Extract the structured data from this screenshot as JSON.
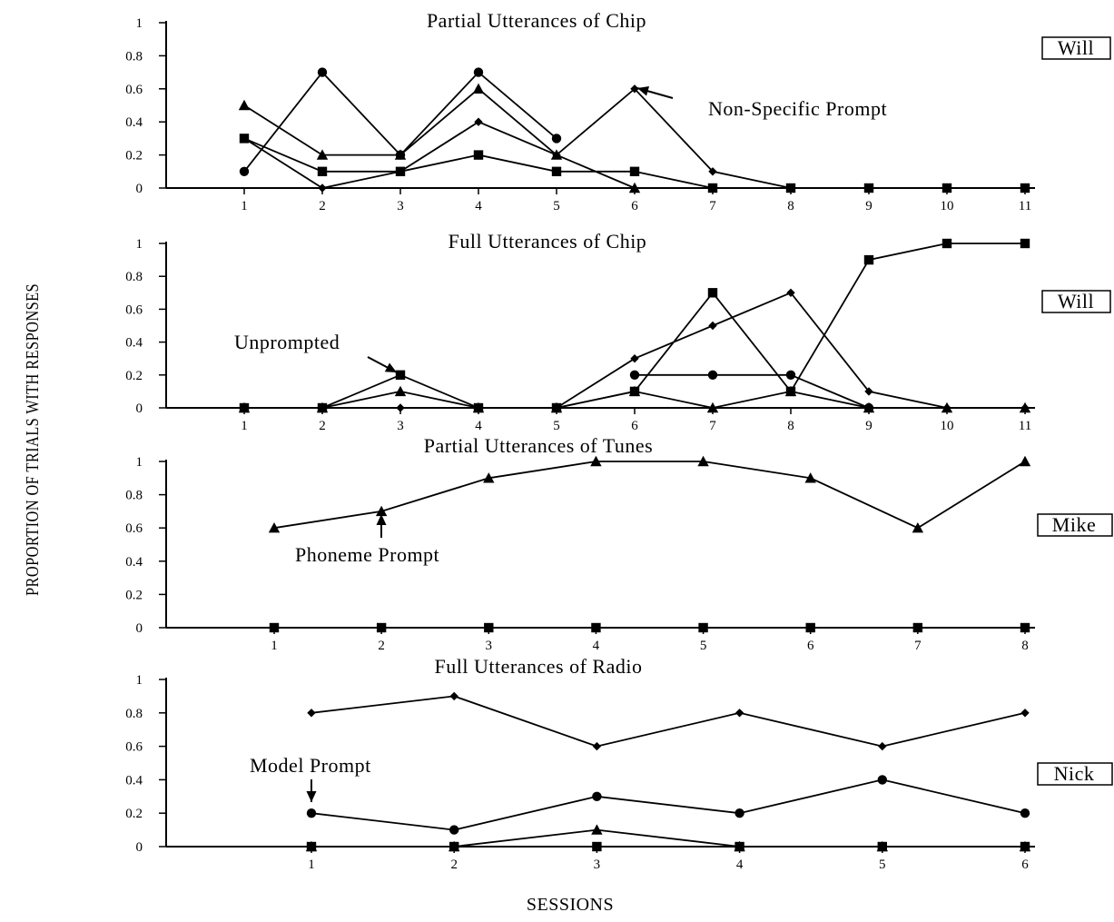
{
  "y_axis_title": "PROPORTION OF TRIALS WITH RESPONSES",
  "x_axis_title": "SESSIONS",
  "chart_data": [
    {
      "type": "line",
      "title": "Partial Utterances of Chip",
      "subject": "Will",
      "ylim": [
        0,
        1
      ],
      "yticks": [
        "0",
        "0.2",
        "0.4",
        "0.6",
        "0.8",
        "1"
      ],
      "x": [
        "1",
        "2",
        "3",
        "4",
        "5",
        "6",
        "7",
        "8",
        "9",
        "10",
        "11"
      ],
      "annotation": "Non-Specific Prompt",
      "series": [
        {
          "marker": "square",
          "values": [
            0.3,
            0.1,
            0.1,
            0.2,
            0.1,
            0.1,
            0,
            0,
            0,
            0,
            0
          ]
        },
        {
          "marker": "circle",
          "values": [
            0.1,
            0.7,
            0.2,
            0.7,
            0.3,
            null,
            null,
            null,
            null,
            null,
            null
          ]
        },
        {
          "marker": "triangle",
          "values": [
            0.5,
            0.2,
            0.2,
            0.6,
            0.2,
            0,
            null,
            null,
            null,
            null,
            null
          ]
        },
        {
          "marker": "diamond",
          "values": [
            0.3,
            0,
            0.1,
            0.4,
            0.2,
            0.6,
            0.1,
            0,
            0,
            0,
            0
          ]
        }
      ]
    },
    {
      "type": "line",
      "title": "Full Utterances of Chip",
      "subject": "Will",
      "ylim": [
        0,
        1
      ],
      "yticks": [
        "0",
        "0.2",
        "0.4",
        "0.6",
        "0.8",
        "1"
      ],
      "x": [
        "1",
        "2",
        "3",
        "4",
        "5",
        "6",
        "7",
        "8",
        "9",
        "10",
        "11"
      ],
      "annotation": "Unprompted",
      "series": [
        {
          "marker": "square",
          "values": [
            0,
            0,
            0.2,
            0,
            0,
            0.1,
            0.7,
            0.1,
            0.9,
            1,
            1
          ]
        },
        {
          "marker": "circle",
          "values": [
            null,
            null,
            null,
            null,
            null,
            0.2,
            0.2,
            0.2,
            0,
            null,
            null
          ]
        },
        {
          "marker": "triangle",
          "values": [
            0,
            0,
            0.1,
            0,
            0,
            0.1,
            0,
            0.1,
            0,
            0,
            0
          ]
        },
        {
          "marker": "diamond",
          "values": [
            0,
            0,
            0,
            0,
            0,
            0.3,
            0.5,
            0.7,
            0.1,
            0,
            0
          ]
        }
      ]
    },
    {
      "type": "line",
      "title": "Partial Utterances of Tunes",
      "subject": "Mike",
      "ylim": [
        0,
        1
      ],
      "yticks": [
        "0",
        "0.2",
        "0.4",
        "0.6",
        "0.8",
        "1"
      ],
      "x": [
        "1",
        "2",
        "3",
        "4",
        "5",
        "6",
        "7",
        "8"
      ],
      "annotation": "Phoneme Prompt",
      "series": [
        {
          "marker": "triangle",
          "values": [
            0.6,
            0.7,
            0.9,
            1,
            1,
            0.9,
            0.6,
            1
          ]
        },
        {
          "marker": "square",
          "values": [
            0,
            0,
            0,
            0,
            0,
            0,
            0,
            0
          ]
        }
      ]
    },
    {
      "type": "line",
      "title": "Full Utterances of Radio",
      "subject": "Nick",
      "ylim": [
        0,
        1
      ],
      "yticks": [
        "0",
        "0.2",
        "0.4",
        "0.6",
        "0.8",
        "1"
      ],
      "x": [
        "1",
        "2",
        "3",
        "4",
        "5",
        "6"
      ],
      "annotation": "Model Prompt",
      "series": [
        {
          "marker": "diamond",
          "values": [
            0.8,
            0.9,
            0.6,
            0.8,
            0.6,
            0.8
          ]
        },
        {
          "marker": "circle",
          "values": [
            0.2,
            0.1,
            0.3,
            0.2,
            0.4,
            0.2
          ]
        },
        {
          "marker": "triangle",
          "values": [
            0,
            0,
            0.1,
            0,
            0,
            0
          ]
        },
        {
          "marker": "square",
          "values": [
            0,
            0,
            0,
            0,
            0,
            0
          ]
        }
      ]
    }
  ]
}
